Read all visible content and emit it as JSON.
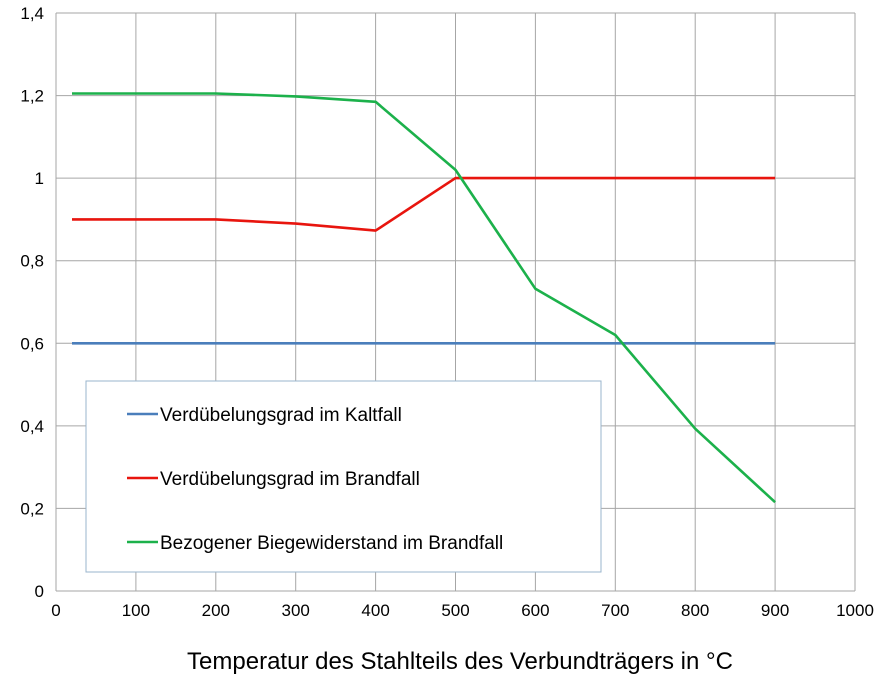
{
  "chart_data": {
    "type": "line",
    "xlabel": "Temperatur des Stahlteils des Verbundträgers in °C",
    "ylabel": "",
    "xlim": [
      0,
      1000
    ],
    "ylim": [
      0,
      1.4
    ],
    "x_ticks": [
      "0",
      "100",
      "200",
      "300",
      "400",
      "500",
      "600",
      "700",
      "800",
      "900",
      "1000"
    ],
    "y_ticks": [
      "0",
      "0,2",
      "0,4",
      "0,6",
      "0,8",
      "1",
      "1,2",
      "1,4"
    ],
    "grid": true,
    "legend_position": "bottom-left",
    "series": [
      {
        "name": "Verdübelungsgrad im Kaltfall",
        "color": "#4a7ebb",
        "points": [
          [
            20,
            0.6
          ],
          [
            900,
            0.6
          ]
        ]
      },
      {
        "name": "Verdübelungsgrad im Brandfall",
        "color": "#e8150e",
        "points": [
          [
            20,
            0.9
          ],
          [
            200,
            0.9
          ],
          [
            300,
            0.89
          ],
          [
            400,
            0.873
          ],
          [
            500,
            1.0
          ],
          [
            600,
            1.0
          ],
          [
            700,
            1.0
          ],
          [
            800,
            1.0
          ],
          [
            900,
            1.0
          ]
        ]
      },
      {
        "name": "Bezogener Biegewiderstand im Brandfall",
        "color": "#1cb14b",
        "points": [
          [
            20,
            1.205
          ],
          [
            200,
            1.205
          ],
          [
            300,
            1.198
          ],
          [
            400,
            1.185
          ],
          [
            500,
            1.02
          ],
          [
            600,
            0.732
          ],
          [
            700,
            0.62
          ],
          [
            800,
            0.393
          ],
          [
            900,
            0.215
          ]
        ]
      }
    ]
  }
}
